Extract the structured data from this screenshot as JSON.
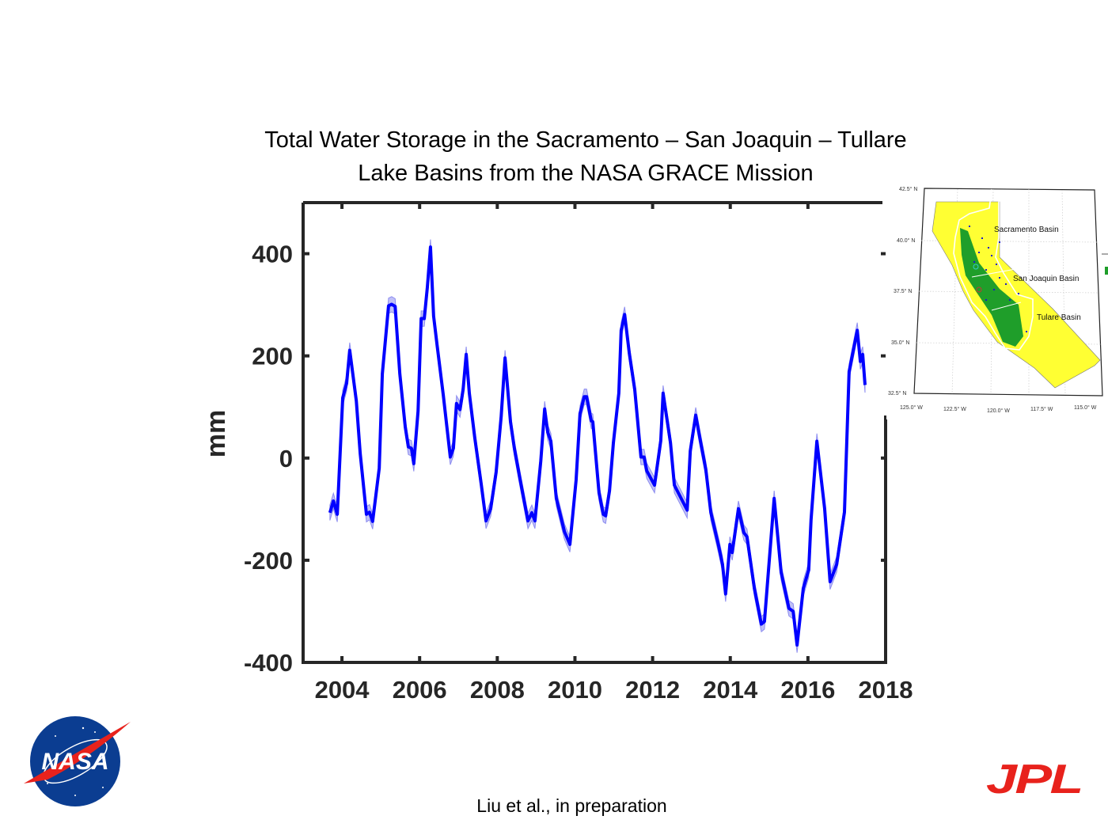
{
  "title_lines": [
    "Total Water Storage in the Sacramento – San Joaquin – Tullare",
    "Lake Basins from the NASA GRACE Mission"
  ],
  "footer": "Liu et al., in preparation",
  "logos": {
    "left": "NASA",
    "right": "JPL"
  },
  "colors": {
    "series": "#0000ff",
    "band": "#8c8cf0",
    "axis": "#262626",
    "map_land": "#ffff33",
    "map_valley": "#1f9e2a",
    "jpl_red": "#e8221c",
    "nasa_blue": "#0b3d91"
  },
  "chart_data": {
    "type": "line",
    "title": "",
    "xlabel": "",
    "ylabel": "mm",
    "xlim": [
      2003,
      2018
    ],
    "ylim": [
      -400,
      500
    ],
    "xticks": [
      2004,
      2006,
      2008,
      2010,
      2012,
      2014,
      2016,
      2018
    ],
    "yticks": [
      -400,
      -200,
      0,
      200,
      400
    ],
    "grid": false,
    "uncertainty_band_mm": 15,
    "series": [
      {
        "x": [
          2003.69,
          2003.78,
          2003.88,
          2004.02,
          2004.12,
          2004.2,
          2004.37,
          2004.47,
          2004.63,
          2004.71,
          2004.79,
          2004.96,
          2005.04,
          2005.2,
          2005.28,
          2005.37,
          2005.49,
          2005.63,
          2005.71,
          2005.79,
          2005.85,
          2005.96,
          2006.04,
          2006.12,
          2006.2,
          2006.28,
          2006.36,
          2006.45,
          2006.61,
          2006.79,
          2006.87,
          2006.95,
          2007.04,
          2007.12,
          2007.2,
          2007.28,
          2007.42,
          2007.59,
          2007.71,
          2007.83,
          2007.97,
          2008.1,
          2008.2,
          2008.34,
          2008.44,
          2008.59,
          2008.79,
          2008.89,
          2008.97,
          2009.12,
          2009.22,
          2009.3,
          2009.38,
          2009.52,
          2009.73,
          2009.87,
          2010.03,
          2010.13,
          2010.24,
          2010.3,
          2010.42,
          2010.46,
          2010.62,
          2010.73,
          2010.79,
          2010.89,
          2010.99,
          2011.13,
          2011.19,
          2011.28,
          2011.4,
          2011.54,
          2011.7,
          2011.78,
          2011.85,
          2012.05,
          2012.21,
          2012.27,
          2012.46,
          2012.56,
          2012.89,
          2012.97,
          2013.11,
          2013.23,
          2013.37,
          2013.5,
          2013.7,
          2013.8,
          2013.88,
          2013.99,
          2014.05,
          2014.21,
          2014.35,
          2014.43,
          2014.62,
          2014.8,
          2014.88,
          2015.13,
          2015.31,
          2015.51,
          2015.62,
          2015.72,
          2015.88,
          2016.02,
          2016.08,
          2016.23,
          2016.43,
          2016.57,
          2016.74,
          2016.94,
          2017.06,
          2017.27,
          2017.35,
          2017.41,
          2017.47
        ],
        "y": [
          -107,
          -84,
          -110,
          118,
          146,
          211,
          112,
          9,
          -110,
          -106,
          -124,
          -20,
          165,
          298,
          301,
          297,
          165,
          61,
          22,
          19,
          -11,
          92,
          273,
          273,
          335,
          413,
          278,
          221,
          123,
          2,
          19,
          107,
          95,
          134,
          203,
          127,
          40,
          -53,
          -123,
          -99,
          -28,
          81,
          196,
          71,
          19,
          -43,
          -123,
          -107,
          -123,
          -6,
          96,
          50,
          33,
          -79,
          -144,
          -169,
          -43,
          87,
          120,
          120,
          73,
          71,
          -68,
          -110,
          -113,
          -64,
          30,
          127,
          250,
          281,
          205,
          134,
          2,
          2,
          -25,
          -53,
          34,
          127,
          30,
          -53,
          -102,
          14,
          84,
          34,
          -22,
          -107,
          -172,
          -208,
          -266,
          -169,
          -185,
          -99,
          -146,
          -154,
          -255,
          -325,
          -320,
          -79,
          -224,
          -294,
          -300,
          -366,
          -255,
          -219,
          -121,
          33,
          -99,
          -242,
          -208,
          -106,
          169,
          250,
          189,
          203,
          143
        ]
      }
    ]
  },
  "inset_map": {
    "labels": [
      "Sacramento Basin",
      "San Joaquin Basin",
      "Tulare Basin"
    ],
    "lat_labels": [
      "42.5° N",
      "40.0° N",
      "37.5° N",
      "35.0° N",
      "32.5° N"
    ],
    "lon_labels": [
      "125.0° W",
      "122.5° W",
      "120.0° W",
      "117.5° W",
      "115.0° W"
    ]
  }
}
